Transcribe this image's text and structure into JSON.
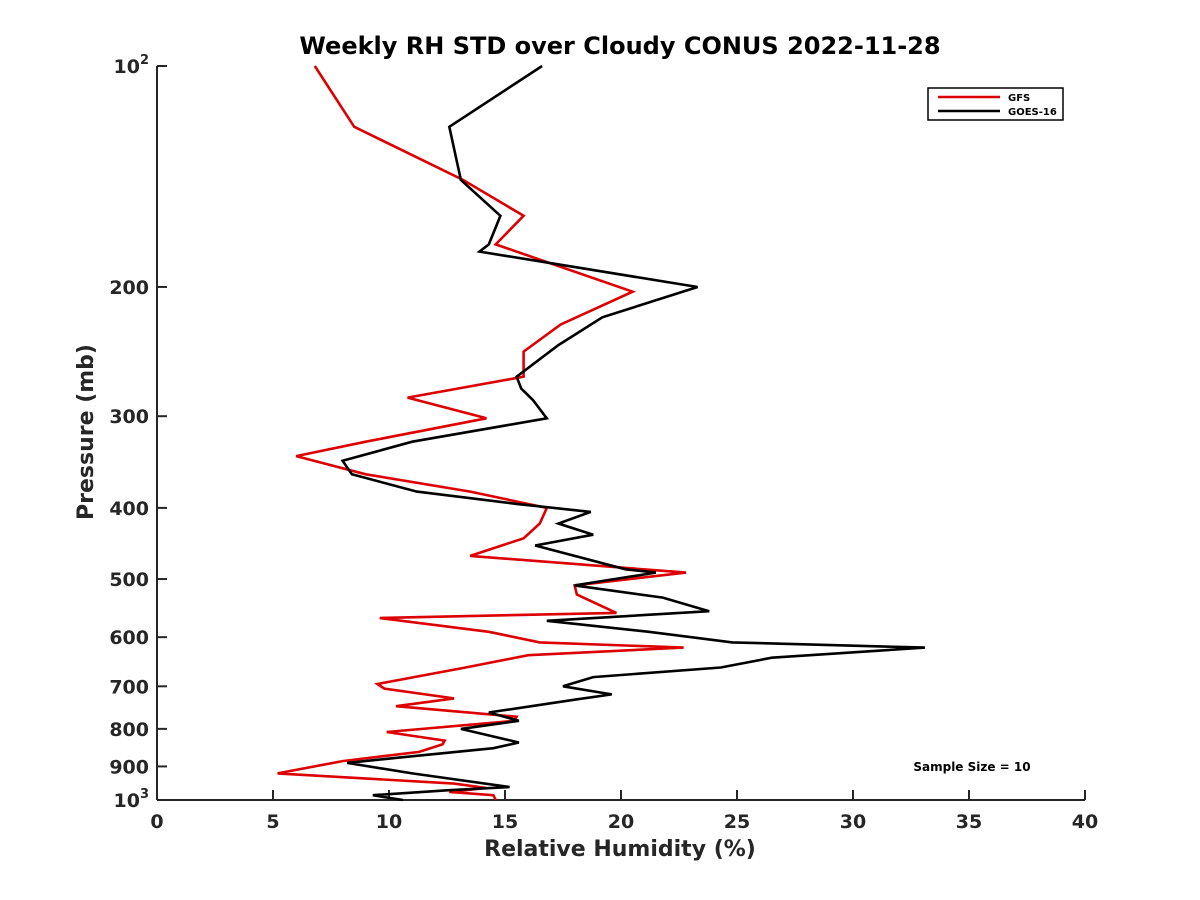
{
  "chart_data": {
    "type": "line",
    "title": "Weekly RH STD over Cloudy CONUS 2022-11-28",
    "xlabel": "Relative Humidity (%)",
    "ylabel": "Pressure (mb)",
    "xlim": [
      0,
      40
    ],
    "ylim": [
      100,
      1000
    ],
    "yscale": "log",
    "yreversed": true,
    "grid": false,
    "legend_position": "top-right",
    "x_ticks": [
      "0",
      "5",
      "10",
      "15",
      "20",
      "25",
      "30",
      "35",
      "40"
    ],
    "y_ticks": [
      {
        "value": 100,
        "base": "10",
        "exp": "2"
      },
      {
        "value": 200,
        "label": "200"
      },
      {
        "value": 300,
        "label": "300"
      },
      {
        "value": 400,
        "label": "400"
      },
      {
        "value": 500,
        "label": "500"
      },
      {
        "value": 600,
        "label": "600"
      },
      {
        "value": 700,
        "label": "700"
      },
      {
        "value": 800,
        "label": "800"
      },
      {
        "value": 900,
        "label": "900"
      },
      {
        "value": 1000,
        "base": "10",
        "exp": "3"
      }
    ],
    "series": [
      {
        "name": "GFS",
        "color": "#dd0000",
        "points": [
          [
            6.8,
            100
          ],
          [
            8.5,
            121
          ],
          [
            13.2,
            143
          ],
          [
            15.8,
            160
          ],
          [
            14.6,
            175
          ],
          [
            20.5,
            203
          ],
          [
            17.4,
            225
          ],
          [
            15.8,
            245
          ],
          [
            15.8,
            265
          ],
          [
            10.8,
            283
          ],
          [
            14.2,
            302
          ],
          [
            9.0,
            325
          ],
          [
            6.0,
            340
          ],
          [
            9.0,
            360
          ],
          [
            13.5,
            380
          ],
          [
            16.8,
            400
          ],
          [
            16.5,
            420
          ],
          [
            15.8,
            440
          ],
          [
            13.5,
            465
          ],
          [
            22.8,
            490
          ],
          [
            18.0,
            510
          ],
          [
            18.1,
            525
          ],
          [
            19.8,
            556
          ],
          [
            9.6,
            565
          ],
          [
            14.3,
            590
          ],
          [
            16.5,
            610
          ],
          [
            22.7,
            620
          ],
          [
            16.0,
            635
          ],
          [
            13.3,
            660
          ],
          [
            9.5,
            695
          ],
          [
            9.8,
            705
          ],
          [
            12.8,
            727
          ],
          [
            10.3,
            745
          ],
          [
            15.5,
            770
          ],
          [
            15.4,
            780
          ],
          [
            9.9,
            808
          ],
          [
            12.4,
            830
          ],
          [
            12.3,
            840
          ],
          [
            11.3,
            860
          ],
          [
            8.0,
            885
          ],
          [
            5.2,
            920
          ],
          [
            12.8,
            950
          ],
          [
            14.2,
            963
          ],
          [
            12.6,
            975
          ],
          [
            14.5,
            985
          ],
          [
            14.6,
            1000
          ]
        ]
      },
      {
        "name": "GOES-16",
        "color": "#000000",
        "points": [
          [
            16.6,
            100
          ],
          [
            12.6,
            121
          ],
          [
            13.1,
            143
          ],
          [
            14.8,
            160
          ],
          [
            14.3,
            175
          ],
          [
            13.9,
            179
          ],
          [
            23.3,
            200
          ],
          [
            19.2,
            220
          ],
          [
            17.3,
            240
          ],
          [
            15.5,
            265
          ],
          [
            15.7,
            275
          ],
          [
            16.2,
            285
          ],
          [
            16.8,
            302
          ],
          [
            11.0,
            325
          ],
          [
            8.0,
            345
          ],
          [
            8.4,
            360
          ],
          [
            11.2,
            380
          ],
          [
            15.5,
            395
          ],
          [
            18.7,
            405
          ],
          [
            17.3,
            420
          ],
          [
            18.8,
            435
          ],
          [
            16.3,
            450
          ],
          [
            20.2,
            485
          ],
          [
            21.5,
            490
          ],
          [
            18.0,
            510
          ],
          [
            21.8,
            530
          ],
          [
            23.8,
            553
          ],
          [
            16.8,
            570
          ],
          [
            21.2,
            590
          ],
          [
            24.8,
            610
          ],
          [
            33.1,
            620
          ],
          [
            26.5,
            640
          ],
          [
            24.3,
            660
          ],
          [
            18.8,
            680
          ],
          [
            17.5,
            700
          ],
          [
            19.6,
            718
          ],
          [
            18.0,
            730
          ],
          [
            14.3,
            760
          ],
          [
            15.6,
            780
          ],
          [
            13.1,
            800
          ],
          [
            15.6,
            835
          ],
          [
            14.5,
            850
          ],
          [
            10.5,
            875
          ],
          [
            8.2,
            890
          ],
          [
            11.0,
            920
          ],
          [
            15.2,
            960
          ],
          [
            12.5,
            970
          ],
          [
            9.3,
            985
          ],
          [
            10.6,
            1000
          ]
        ]
      }
    ],
    "annotation": "Sample Size = 10"
  }
}
